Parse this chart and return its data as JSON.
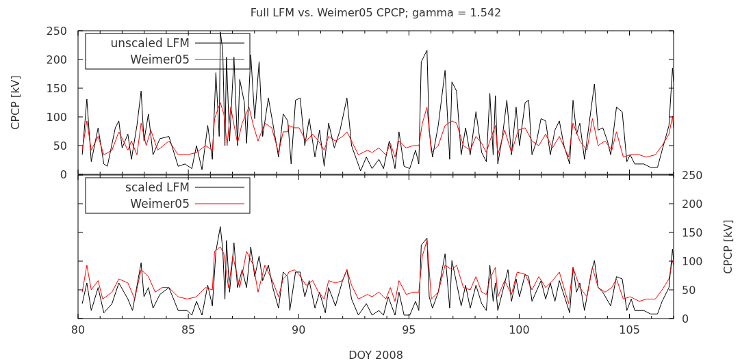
{
  "chart_data": [
    {
      "type": "line",
      "title": "Full LFM vs. Weimer05 CPCP; gamma = 1.542",
      "ylabel": "CPCP [kV]",
      "xlim": [
        80,
        107
      ],
      "ylim": [
        0,
        250
      ],
      "yticks": [
        0,
        50,
        100,
        150,
        200,
        250
      ],
      "xticks": [
        80,
        {
          "value": 81,
          "label": null
        },
        {
          "value": 82,
          "label": null
        },
        {
          "value": 83,
          "label": null
        },
        {
          "value": 84,
          "label": null
        },
        85,
        {
          "value": 86,
          "label": null
        },
        {
          "value": 87,
          "label": null
        },
        {
          "value": 88,
          "label": null
        },
        {
          "value": 89,
          "label": null
        },
        90,
        {
          "value": 91,
          "label": null
        },
        {
          "value": 92,
          "label": null
        },
        {
          "value": 93,
          "label": null
        },
        {
          "value": 94,
          "label": null
        },
        95,
        {
          "value": 96,
          "label": null
        },
        {
          "value": 97,
          "label": null
        },
        {
          "value": 98,
          "label": null
        },
        {
          "value": 99,
          "label": null
        },
        100,
        {
          "value": 101,
          "label": null
        },
        {
          "value": 102,
          "label": null
        },
        {
          "value": 103,
          "label": null
        },
        {
          "value": 104,
          "label": null
        },
        105,
        {
          "value": 106,
          "label": null
        },
        {
          "value": 107,
          "label": null
        }
      ],
      "tick_labels": "y",
      "legend": "top left",
      "grid": false,
      "marker": "none",
      "line_style": "solid",
      "series": [
        {
          "name": "unscaled LFM",
          "color": "#000000",
          "x": [
            80.19,
            80.4,
            80.6,
            80.91,
            81.17,
            81.33,
            81.69,
            81.85,
            82.0,
            82.26,
            82.42,
            82.67,
            82.86,
            82.99,
            83.19,
            83.4,
            83.71,
            84.12,
            84.54,
            84.85,
            85.16,
            85.37,
            85.62,
            85.88,
            86.09,
            86.25,
            86.4,
            86.45,
            86.56,
            86.66,
            86.73,
            86.87,
            87.07,
            87.23,
            87.33,
            87.54,
            87.64,
            87.83,
            88.01,
            88.21,
            88.37,
            88.63,
            88.83,
            89.09,
            89.3,
            89.51,
            89.66,
            89.86,
            90.07,
            90.28,
            90.48,
            90.74,
            90.95,
            91.16,
            91.36,
            91.62,
            91.88,
            92.19,
            92.4,
            92.81,
            93.07,
            93.33,
            93.64,
            93.85,
            94.11,
            94.37,
            94.55,
            94.78,
            95.04,
            95.3,
            95.45,
            95.56,
            95.82,
            95.92,
            96.07,
            96.33,
            96.64,
            96.85,
            96.95,
            97.16,
            97.37,
            97.57,
            97.78,
            98.04,
            98.3,
            98.51,
            98.67,
            98.82,
            98.92,
            99.03,
            99.24,
            99.44,
            99.65,
            99.86,
            100.01,
            100.27,
            100.43,
            100.58,
            100.79,
            100.99,
            101.2,
            101.41,
            101.62,
            101.82,
            102.03,
            102.29,
            102.44,
            102.6,
            102.75,
            102.96,
            103.27,
            103.41,
            103.58,
            103.79,
            104.0,
            104.15,
            104.41,
            104.67,
            104.88,
            105.03,
            105.24,
            105.65,
            105.96,
            106.27,
            106.48,
            106.79,
            106.95,
            107
          ],
          "values": [
            34,
            131,
            22,
            81,
            18,
            14,
            81,
            93,
            46,
            70,
            26,
            85,
            145,
            58,
            105,
            34,
            62,
            66,
            14,
            18,
            10,
            50,
            8,
            85,
            26,
            177,
            66,
            248,
            216,
            50,
            204,
            58,
            204,
            50,
            165,
            125,
            54,
            208,
            97,
            196,
            66,
            133,
            89,
            30,
            105,
            93,
            18,
            129,
            133,
            50,
            97,
            30,
            77,
            14,
            89,
            46,
            77,
            133,
            50,
            6,
            30,
            10,
            26,
            10,
            58,
            10,
            74,
            14,
            10,
            42,
            18,
            196,
            216,
            77,
            30,
            85,
            181,
            26,
            161,
            145,
            34,
            81,
            34,
            109,
            38,
            22,
            141,
            34,
            137,
            18,
            66,
            129,
            34,
            117,
            50,
            125,
            129,
            34,
            58,
            97,
            93,
            34,
            77,
            93,
            50,
            18,
            129,
            70,
            89,
            26,
            117,
            157,
            77,
            81,
            58,
            34,
            117,
            109,
            22,
            34,
            18,
            18,
            12,
            12,
            42,
            85,
            185,
            161
          ]
        },
        {
          "name": "Weimer05",
          "color": "#ff0000",
          "x": [
            80.19,
            80.4,
            80.6,
            80.91,
            81.17,
            81.54,
            81.85,
            82.26,
            82.42,
            82.67,
            82.86,
            83.09,
            83.3,
            83.61,
            84.12,
            84.54,
            84.95,
            85.37,
            85.78,
            86.09,
            86.19,
            86.45,
            86.61,
            86.76,
            86.92,
            87.23,
            87.44,
            87.75,
            87.95,
            88.16,
            88.47,
            88.78,
            89.09,
            89.3,
            89.51,
            89.55,
            89.81,
            90.02,
            90.33,
            90.64,
            90.9,
            91.16,
            91.36,
            91.67,
            91.99,
            92.19,
            92.4,
            92.71,
            93.12,
            93.33,
            93.64,
            93.95,
            94.16,
            94.37,
            94.55,
            94.88,
            95.19,
            95.45,
            95.61,
            95.82,
            96.02,
            96.33,
            96.64,
            96.95,
            97.16,
            97.47,
            97.78,
            98.04,
            98.3,
            98.51,
            98.67,
            98.92,
            99.03,
            99.34,
            99.65,
            99.96,
            100.27,
            100.58,
            100.89,
            101.2,
            101.51,
            101.82,
            102.24,
            102.44,
            102.75,
            103.07,
            103.32,
            103.58,
            103.89,
            104.2,
            104.41,
            104.72,
            105.03,
            105.45,
            105.76,
            106.17,
            106.48,
            106.79,
            106.95,
            107
          ],
          "values": [
            42,
            93,
            42,
            66,
            34,
            42,
            74,
            42,
            58,
            34,
            89,
            50,
            77,
            42,
            58,
            34,
            34,
            38,
            50,
            42,
            97,
            125,
            105,
            50,
            117,
            54,
            89,
            117,
            85,
            58,
            89,
            81,
            38,
            74,
            74,
            85,
            81,
            81,
            58,
            70,
            58,
            42,
            66,
            58,
            66,
            74,
            58,
            34,
            42,
            38,
            46,
            34,
            54,
            30,
            58,
            46,
            50,
            50,
            89,
            117,
            38,
            50,
            85,
            93,
            89,
            50,
            42,
            66,
            54,
            38,
            58,
            85,
            34,
            77,
            38,
            77,
            81,
            58,
            50,
            70,
            46,
            66,
            30,
            89,
            58,
            42,
            97,
            50,
            58,
            42,
            74,
            30,
            34,
            34,
            30,
            34,
            50,
            70,
            101,
            81
          ]
        }
      ]
    },
    {
      "type": "line",
      "xlabel": "DOY 2008",
      "y2label": "CPCP [kV]",
      "xlim": [
        80,
        107
      ],
      "y2lim": [
        0,
        250
      ],
      "y2ticks": [
        0,
        50,
        100,
        150,
        200,
        250
      ],
      "xticks": [
        80,
        {
          "value": 81,
          "label": null
        },
        {
          "value": 82,
          "label": null
        },
        {
          "value": 83,
          "label": null
        },
        {
          "value": 84,
          "label": null
        },
        85,
        {
          "value": 86,
          "label": null
        },
        {
          "value": 87,
          "label": null
        },
        {
          "value": 88,
          "label": null
        },
        {
          "value": 89,
          "label": null
        },
        90,
        {
          "value": 91,
          "label": null
        },
        {
          "value": 92,
          "label": null
        },
        {
          "value": 93,
          "label": null
        },
        {
          "value": 94,
          "label": null
        },
        95,
        {
          "value": 96,
          "label": null
        },
        {
          "value": 97,
          "label": null
        },
        {
          "value": 98,
          "label": null
        },
        {
          "value": 99,
          "label": null
        },
        100,
        {
          "value": 101,
          "label": null
        },
        {
          "value": 102,
          "label": null
        },
        {
          "value": 103,
          "label": null
        },
        {
          "value": 104,
          "label": null
        },
        105,
        {
          "value": 106,
          "label": null
        },
        {
          "value": 107,
          "label": null
        }
      ],
      "legend": "top left",
      "grid": false,
      "marker": "none",
      "line_style": "solid",
      "series": [
        {
          "name": "scaled LFM",
          "color": "#000000",
          "axis": "y2",
          "x": [
            80.19,
            80.4,
            80.6,
            80.91,
            81.17,
            81.54,
            81.85,
            82.26,
            82.47,
            82.86,
            82.99,
            83.19,
            83.4,
            83.71,
            84.12,
            84.54,
            84.95,
            85.16,
            85.37,
            85.62,
            85.88,
            86.09,
            86.25,
            86.45,
            86.56,
            86.66,
            86.73,
            86.87,
            87.07,
            87.23,
            87.44,
            87.64,
            87.83,
            88.01,
            88.21,
            88.37,
            88.63,
            88.83,
            89.09,
            89.3,
            89.51,
            89.6,
            89.86,
            90.07,
            90.28,
            90.48,
            90.74,
            90.95,
            91.21,
            91.36,
            91.67,
            91.99,
            92.19,
            92.4,
            92.71,
            93.07,
            93.33,
            93.64,
            93.85,
            94.06,
            94.37,
            94.55,
            94.78,
            95.04,
            95.3,
            95.45,
            95.56,
            95.82,
            95.92,
            96.07,
            96.33,
            96.64,
            96.85,
            96.95,
            97.16,
            97.37,
            97.57,
            97.78,
            98.04,
            98.3,
            98.51,
            98.67,
            98.82,
            98.92,
            99.03,
            99.24,
            99.49,
            99.65,
            99.86,
            100.01,
            100.27,
            100.43,
            100.58,
            100.99,
            101.2,
            101.41,
            101.62,
            101.82,
            102.29,
            102.44,
            102.6,
            102.75,
            102.96,
            103.27,
            103.41,
            103.58,
            103.79,
            104.15,
            104.41,
            104.67,
            104.88,
            105.08,
            105.24,
            105.65,
            105.96,
            106.27,
            106.48,
            106.79,
            106.95,
            107
          ],
          "values": [
            26,
            62,
            14,
            54,
            10,
            26,
            62,
            34,
            14,
            97,
            38,
            54,
            18,
            42,
            54,
            14,
            14,
            6,
            30,
            6,
            58,
            22,
            117,
            160,
            121,
            34,
            136,
            46,
            132,
            54,
            85,
            54,
            125,
            73,
            109,
            66,
            93,
            54,
            18,
            81,
            73,
            14,
            81,
            81,
            38,
            66,
            18,
            46,
            10,
            54,
            22,
            66,
            85,
            34,
            6,
            26,
            6,
            14,
            6,
            38,
            6,
            46,
            6,
            6,
            30,
            14,
            128,
            140,
            38,
            18,
            46,
            113,
            18,
            101,
            62,
            22,
            58,
            18,
            58,
            26,
            14,
            93,
            30,
            62,
            14,
            46,
            85,
            30,
            69,
            38,
            77,
            73,
            30,
            66,
            34,
            62,
            30,
            66,
            10,
            89,
            46,
            62,
            14,
            81,
            101,
            54,
            46,
            22,
            73,
            69,
            14,
            34,
            14,
            14,
            8,
            8,
            30,
            54,
            121,
            101
          ]
        },
        {
          "name": "Weimer05",
          "color": "#ff0000",
          "axis": "y2",
          "x": [
            80.19,
            80.4,
            80.6,
            80.91,
            81.12,
            81.54,
            81.85,
            82.26,
            82.57,
            82.86,
            83.19,
            83.5,
            83.81,
            84.12,
            84.54,
            84.95,
            85.37,
            85.78,
            86.09,
            86.19,
            86.45,
            86.61,
            86.82,
            87.02,
            87.33,
            87.64,
            87.95,
            88.16,
            88.47,
            88.78,
            89.09,
            89.3,
            89.51,
            89.55,
            89.81,
            90.02,
            90.33,
            90.64,
            90.9,
            91.16,
            91.36,
            91.67,
            91.99,
            92.19,
            92.4,
            92.71,
            93.12,
            93.33,
            93.64,
            93.95,
            94.16,
            94.37,
            94.55,
            94.88,
            95.19,
            95.45,
            95.61,
            95.82,
            96.02,
            96.33,
            96.64,
            96.95,
            97.16,
            97.47,
            97.78,
            98.04,
            98.3,
            98.51,
            98.67,
            98.92,
            99.03,
            99.34,
            99.65,
            99.91,
            100.27,
            100.58,
            100.89,
            101.2,
            101.51,
            101.82,
            102.24,
            102.44,
            102.75,
            103.07,
            103.32,
            103.58,
            103.89,
            104.2,
            104.41,
            104.72,
            105.03,
            105.45,
            105.76,
            106.17,
            106.48,
            106.79,
            106.95,
            107
          ],
          "values": [
            46,
            93,
            50,
            66,
            34,
            46,
            69,
            62,
            34,
            85,
            73,
            46,
            54,
            54,
            38,
            34,
            38,
            54,
            50,
            117,
            125,
            113,
            54,
            109,
            54,
            117,
            93,
            46,
            93,
            69,
            38,
            69,
            77,
            81,
            85,
            77,
            58,
            66,
            46,
            34,
            66,
            62,
            66,
            85,
            58,
            34,
            42,
            38,
            46,
            34,
            54,
            30,
            66,
            42,
            46,
            46,
            109,
            136,
            34,
            46,
            93,
            85,
            93,
            54,
            50,
            73,
            46,
            42,
            69,
            89,
            38,
            66,
            42,
            81,
            77,
            50,
            73,
            54,
            66,
            81,
            26,
            89,
            54,
            38,
            89,
            54,
            46,
            54,
            69,
            34,
            38,
            30,
            34,
            34,
            50,
            69,
            101,
            93
          ]
        }
      ]
    }
  ]
}
